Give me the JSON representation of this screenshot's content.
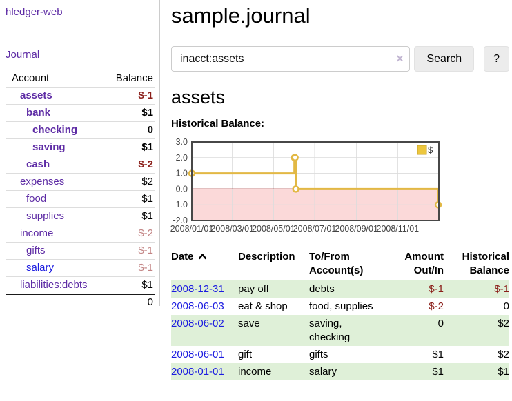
{
  "colors": {
    "accent_purple": "#5e2ca5",
    "link_blue": "#1c1ce0",
    "negative_strong": "#8b1f1a",
    "negative_muted": "#c28383",
    "row_green": "#dff0d8"
  },
  "sidebar": {
    "brand": "hledger-web",
    "journal_label": "Journal",
    "accounts": {
      "headers": [
        "Account",
        "Balance"
      ],
      "rows": [
        {
          "account": "assets",
          "balance": "$-1",
          "level": 1,
          "bold": true,
          "balance_style": "negative-strong",
          "link_style": "purple"
        },
        {
          "account": "bank",
          "balance": "$1",
          "level": 2,
          "bold": true,
          "balance_style": "normal",
          "link_style": "purple"
        },
        {
          "account": "checking",
          "balance": "0",
          "level": 3,
          "bold": true,
          "balance_style": "normal",
          "link_style": "purple"
        },
        {
          "account": "saving",
          "balance": "$1",
          "level": 3,
          "bold": true,
          "balance_style": "normal",
          "link_style": "purple"
        },
        {
          "account": "cash",
          "balance": "$-2",
          "level": 2,
          "bold": true,
          "balance_style": "negative-strong",
          "link_style": "purple"
        },
        {
          "account": "expenses",
          "balance": "$2",
          "level": 1,
          "bold": false,
          "balance_style": "normal",
          "link_style": "purple"
        },
        {
          "account": "food",
          "balance": "$1",
          "level": 2,
          "bold": false,
          "balance_style": "normal",
          "link_style": "purple"
        },
        {
          "account": "supplies",
          "balance": "$1",
          "level": 2,
          "bold": false,
          "balance_style": "normal",
          "link_style": "purple"
        },
        {
          "account": "income",
          "balance": "$-2",
          "level": 1,
          "bold": false,
          "balance_style": "negative-muted",
          "link_style": "purple"
        },
        {
          "account": "gifts",
          "balance": "$-1",
          "level": 2,
          "bold": false,
          "balance_style": "negative-muted",
          "link_style": "purple"
        },
        {
          "account": "salary",
          "balance": "$-1",
          "level": 2,
          "bold": false,
          "balance_style": "negative-muted",
          "link_style": "blue"
        },
        {
          "account": "liabilities:debts",
          "balance": "$1",
          "level": 1,
          "bold": false,
          "balance_style": "normal",
          "link_style": "purple"
        }
      ],
      "total": "0"
    }
  },
  "main": {
    "title": "sample.journal",
    "search": {
      "value": "inacct:assets",
      "clear_icon": "✕",
      "button_label": "Search",
      "help_label": "?"
    },
    "account_title": "assets",
    "chart_title": "Historical Balance:"
  },
  "chart_data": {
    "type": "line",
    "step": true,
    "title": "Historical Balance:",
    "legend": [
      {
        "label": "$",
        "fill": "#ecc63d",
        "stroke": "#c7a22b"
      }
    ],
    "legend_position": "top-right",
    "grid": true,
    "x_range": [
      "2008-01-01",
      "2009-01-01"
    ],
    "ylim": [
      -2,
      3
    ],
    "y_ticks": [
      "3.0",
      "2.0",
      "1.0",
      "0.0",
      "-1.0",
      "-2.0"
    ],
    "x_ticks": [
      {
        "label": "2008/01/01",
        "date": "2008-01-01"
      },
      {
        "label": "2008/03/01",
        "date": "2008-03-01"
      },
      {
        "label": "2008/05/01",
        "date": "2008-05-01"
      },
      {
        "label": "2008/07/01",
        "date": "2008-07-01"
      },
      {
        "label": "2008/09/01",
        "date": "2008-09-01"
      },
      {
        "label": "2008/11/01",
        "date": "2008-11-01"
      }
    ],
    "series": [
      {
        "name": "$",
        "points": [
          [
            "2008-01-01",
            1
          ],
          [
            "2008-06-01",
            2
          ],
          [
            "2008-06-02",
            2
          ],
          [
            "2008-06-03",
            0
          ],
          [
            "2008-12-31",
            -1
          ]
        ]
      }
    ],
    "colors": {
      "line": "#e2b844",
      "marker_fill": "#ffffff",
      "negative_region": "#fbd9d9",
      "zero_line": "#8b0000",
      "grid": "#dcdcdc",
      "border": "#474747",
      "tick_text": "#444444"
    }
  },
  "register": {
    "headers": {
      "date": "Date",
      "description": "Description",
      "accounts": "To/From Account(s)",
      "amount": "Amount Out/In",
      "balance": "Historical Balance"
    },
    "sort": {
      "column": "date",
      "direction": "ascending"
    },
    "rows": [
      {
        "date": "2008-12-31",
        "description": "pay off",
        "accounts": "debts",
        "amount": "$-1",
        "balance": "$-1",
        "amount_negative": true,
        "balance_negative": true,
        "shaded": true
      },
      {
        "date": "2008-06-03",
        "description": "eat & shop",
        "accounts": "food, supplies",
        "amount": "$-2",
        "balance": "0",
        "amount_negative": true,
        "balance_negative": false,
        "shaded": false
      },
      {
        "date": "2008-06-02",
        "description": "save",
        "accounts": "saving, checking",
        "amount": "0",
        "balance": "$2",
        "amount_negative": false,
        "balance_negative": false,
        "shaded": true
      },
      {
        "date": "2008-06-01",
        "description": "gift",
        "accounts": "gifts",
        "amount": "$1",
        "balance": "$2",
        "amount_negative": false,
        "balance_negative": false,
        "shaded": false
      },
      {
        "date": "2008-01-01",
        "description": "income",
        "accounts": "salary",
        "amount": "$1",
        "balance": "$1",
        "amount_negative": false,
        "balance_negative": false,
        "shaded": true
      }
    ]
  }
}
